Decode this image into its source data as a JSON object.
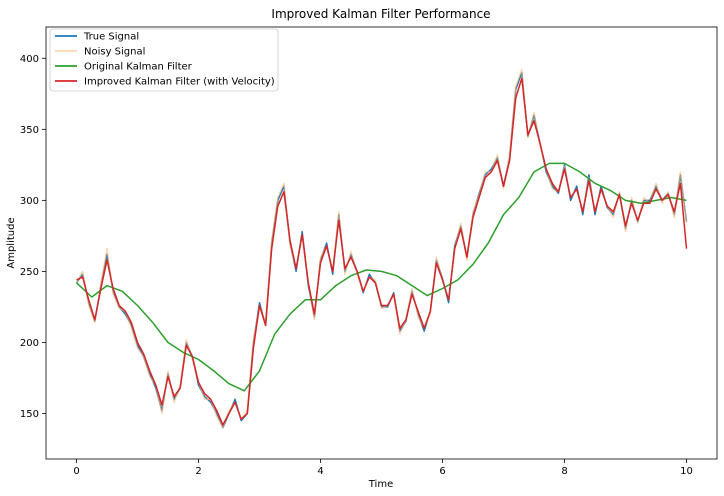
{
  "chart_data": {
    "type": "line",
    "title": "Improved Kalman Filter Performance",
    "xlabel": "Time",
    "ylabel": "Amplitude",
    "xlim": [
      -0.5,
      10.5
    ],
    "ylim": [
      118,
      422
    ],
    "x_ticks": [
      0,
      2,
      4,
      6,
      8,
      10
    ],
    "y_ticks": [
      150,
      200,
      250,
      300,
      350,
      400
    ],
    "grid": false,
    "legend_position": "top-left",
    "series": [
      {
        "name": "True Signal",
        "color": "#1f77b4",
        "x": [
          0,
          0.1,
          0.2,
          0.3,
          0.4,
          0.5,
          0.6,
          0.7,
          0.8,
          0.9,
          1.0,
          1.1,
          1.2,
          1.3,
          1.4,
          1.5,
          1.6,
          1.7,
          1.8,
          1.9,
          2.0,
          2.1,
          2.2,
          2.3,
          2.4,
          2.5,
          2.6,
          2.7,
          2.8,
          2.9,
          3.0,
          3.1,
          3.2,
          3.3,
          3.4,
          3.5,
          3.6,
          3.7,
          3.8,
          3.9,
          4.0,
          4.1,
          4.2,
          4.3,
          4.4,
          4.5,
          4.6,
          4.7,
          4.8,
          4.9,
          5.0,
          5.1,
          5.2,
          5.3,
          5.4,
          5.5,
          5.6,
          5.7,
          5.8,
          5.9,
          6.0,
          6.1,
          6.2,
          6.3,
          6.4,
          6.5,
          6.6,
          6.7,
          6.8,
          6.9,
          7.0,
          7.1,
          7.2,
          7.3,
          7.4,
          7.5,
          7.6,
          7.7,
          7.8,
          7.9,
          8.0,
          8.1,
          8.2,
          8.3,
          8.4,
          8.5,
          8.6,
          8.7,
          8.8,
          8.9,
          9.0,
          9.1,
          9.2,
          9.3,
          9.4,
          9.5,
          9.6,
          9.7,
          9.8,
          9.9,
          10.0
        ],
        "values": [
          242,
          248,
          228,
          215,
          240,
          262,
          236,
          225,
          220,
          212,
          198,
          190,
          178,
          168,
          152,
          178,
          160,
          168,
          200,
          190,
          170,
          162,
          158,
          150,
          140,
          150,
          160,
          145,
          150,
          200,
          228,
          212,
          270,
          300,
          310,
          270,
          250,
          278,
          240,
          218,
          258,
          270,
          248,
          290,
          250,
          262,
          250,
          235,
          248,
          242,
          225,
          225,
          235,
          208,
          215,
          236,
          220,
          208,
          222,
          258,
          245,
          228,
          268,
          282,
          260,
          290,
          305,
          318,
          322,
          330,
          310,
          330,
          378,
          390,
          345,
          360,
          340,
          320,
          310,
          305,
          325,
          300,
          310,
          290,
          318,
          290,
          310,
          295,
          290,
          305,
          280,
          300,
          285,
          300,
          300,
          310,
          300,
          305,
          290,
          318,
          285
        ]
      },
      {
        "name": "Noisy Signal",
        "color": "#ffbb78",
        "x": [
          0,
          0.1,
          0.2,
          0.3,
          0.4,
          0.5,
          0.6,
          0.7,
          0.8,
          0.9,
          1.0,
          1.1,
          1.2,
          1.3,
          1.4,
          1.5,
          1.6,
          1.7,
          1.8,
          1.9,
          2.0,
          2.1,
          2.2,
          2.3,
          2.4,
          2.5,
          2.6,
          2.7,
          2.8,
          2.9,
          3.0,
          3.1,
          3.2,
          3.3,
          3.4,
          3.5,
          3.6,
          3.7,
          3.8,
          3.9,
          4.0,
          4.1,
          4.2,
          4.3,
          4.4,
          4.5,
          4.6,
          4.7,
          4.8,
          4.9,
          5.0,
          5.1,
          5.2,
          5.3,
          5.4,
          5.5,
          5.6,
          5.7,
          5.8,
          5.9,
          6.0,
          6.1,
          6.2,
          6.3,
          6.4,
          6.5,
          6.6,
          6.7,
          6.8,
          6.9,
          7.0,
          7.1,
          7.2,
          7.3,
          7.4,
          7.5,
          7.6,
          7.7,
          7.8,
          7.9,
          8.0,
          8.1,
          8.2,
          8.3,
          8.4,
          8.5,
          8.6,
          8.7,
          8.8,
          8.9,
          9.0,
          9.1,
          9.2,
          9.3,
          9.4,
          9.5,
          9.6,
          9.7,
          9.8,
          9.9,
          10.0
        ],
        "values": [
          242,
          250,
          226,
          214,
          242,
          266,
          234,
          224,
          222,
          210,
          196,
          190,
          176,
          170,
          150,
          180,
          158,
          170,
          202,
          188,
          172,
          160,
          160,
          148,
          140,
          152,
          158,
          146,
          152,
          202,
          226,
          214,
          272,
          302,
          312,
          268,
          252,
          276,
          242,
          216,
          260,
          268,
          250,
          292,
          248,
          264,
          248,
          236,
          246,
          244,
          224,
          226,
          234,
          206,
          216,
          238,
          218,
          210,
          220,
          260,
          244,
          230,
          266,
          284,
          258,
          292,
          304,
          320,
          320,
          332,
          308,
          332,
          380,
          392,
          344,
          362,
          338,
          322,
          308,
          306,
          324,
          302,
          308,
          292,
          316,
          292,
          308,
          296,
          288,
          306,
          278,
          302,
          284,
          302,
          298,
          312,
          298,
          306,
          288,
          320,
          284
        ]
      },
      {
        "name": "Original Kalman Filter",
        "color": "#2ca02c",
        "x": [
          0,
          0.25,
          0.5,
          0.75,
          1.0,
          1.25,
          1.5,
          1.75,
          2.0,
          2.25,
          2.5,
          2.75,
          3.0,
          3.25,
          3.5,
          3.75,
          4.0,
          4.25,
          4.5,
          4.75,
          5.0,
          5.25,
          5.5,
          5.75,
          6.0,
          6.25,
          6.5,
          6.75,
          7.0,
          7.25,
          7.5,
          7.75,
          8.0,
          8.25,
          8.5,
          8.75,
          9.0,
          9.25,
          9.5,
          9.75,
          10.0
        ],
        "values": [
          242,
          232,
          240,
          236,
          226,
          214,
          200,
          193,
          188,
          180,
          171,
          166,
          180,
          206,
          220,
          230,
          230,
          240,
          247,
          251,
          250,
          247,
          240,
          233,
          238,
          244,
          255,
          270,
          290,
          302,
          320,
          326,
          326,
          320,
          312,
          307,
          300,
          298,
          300,
          302,
          300
        ]
      },
      {
        "name": "Improved Kalman Filter (with Velocity)",
        "color": "#d62728",
        "x": [
          0,
          0.1,
          0.2,
          0.3,
          0.4,
          0.5,
          0.6,
          0.7,
          0.8,
          0.9,
          1.0,
          1.1,
          1.2,
          1.3,
          1.4,
          1.5,
          1.6,
          1.7,
          1.8,
          1.9,
          2.0,
          2.1,
          2.2,
          2.3,
          2.4,
          2.5,
          2.6,
          2.7,
          2.8,
          2.9,
          3.0,
          3.1,
          3.2,
          3.3,
          3.4,
          3.5,
          3.6,
          3.7,
          3.8,
          3.9,
          4.0,
          4.1,
          4.2,
          4.3,
          4.4,
          4.5,
          4.6,
          4.7,
          4.8,
          4.9,
          5.0,
          5.1,
          5.2,
          5.3,
          5.4,
          5.5,
          5.6,
          5.7,
          5.8,
          5.9,
          6.0,
          6.1,
          6.2,
          6.3,
          6.4,
          6.5,
          6.6,
          6.7,
          6.8,
          6.9,
          7.0,
          7.1,
          7.2,
          7.3,
          7.4,
          7.5,
          7.6,
          7.7,
          7.8,
          7.9,
          8.0,
          8.1,
          8.2,
          8.3,
          8.4,
          8.5,
          8.6,
          8.7,
          8.8,
          8.9,
          9.0,
          9.1,
          9.2,
          9.3,
          9.4,
          9.5,
          9.6,
          9.7,
          9.8,
          9.9,
          10.0
        ],
        "values": [
          244,
          246,
          230,
          216,
          238,
          258,
          238,
          226,
          222,
          214,
          200,
          192,
          180,
          170,
          156,
          176,
          162,
          168,
          198,
          190,
          172,
          164,
          160,
          152,
          142,
          150,
          158,
          146,
          150,
          196,
          226,
          212,
          266,
          296,
          306,
          272,
          252,
          276,
          242,
          220,
          256,
          268,
          250,
          286,
          252,
          260,
          250,
          236,
          246,
          242,
          226,
          226,
          234,
          210,
          216,
          234,
          222,
          210,
          222,
          256,
          244,
          230,
          266,
          280,
          260,
          288,
          302,
          316,
          320,
          328,
          310,
          328,
          372,
          386,
          346,
          356,
          340,
          322,
          312,
          306,
          322,
          302,
          308,
          292,
          314,
          292,
          308,
          296,
          292,
          304,
          282,
          298,
          286,
          298,
          298,
          308,
          300,
          304,
          292,
          312,
          266
        ]
      }
    ]
  }
}
